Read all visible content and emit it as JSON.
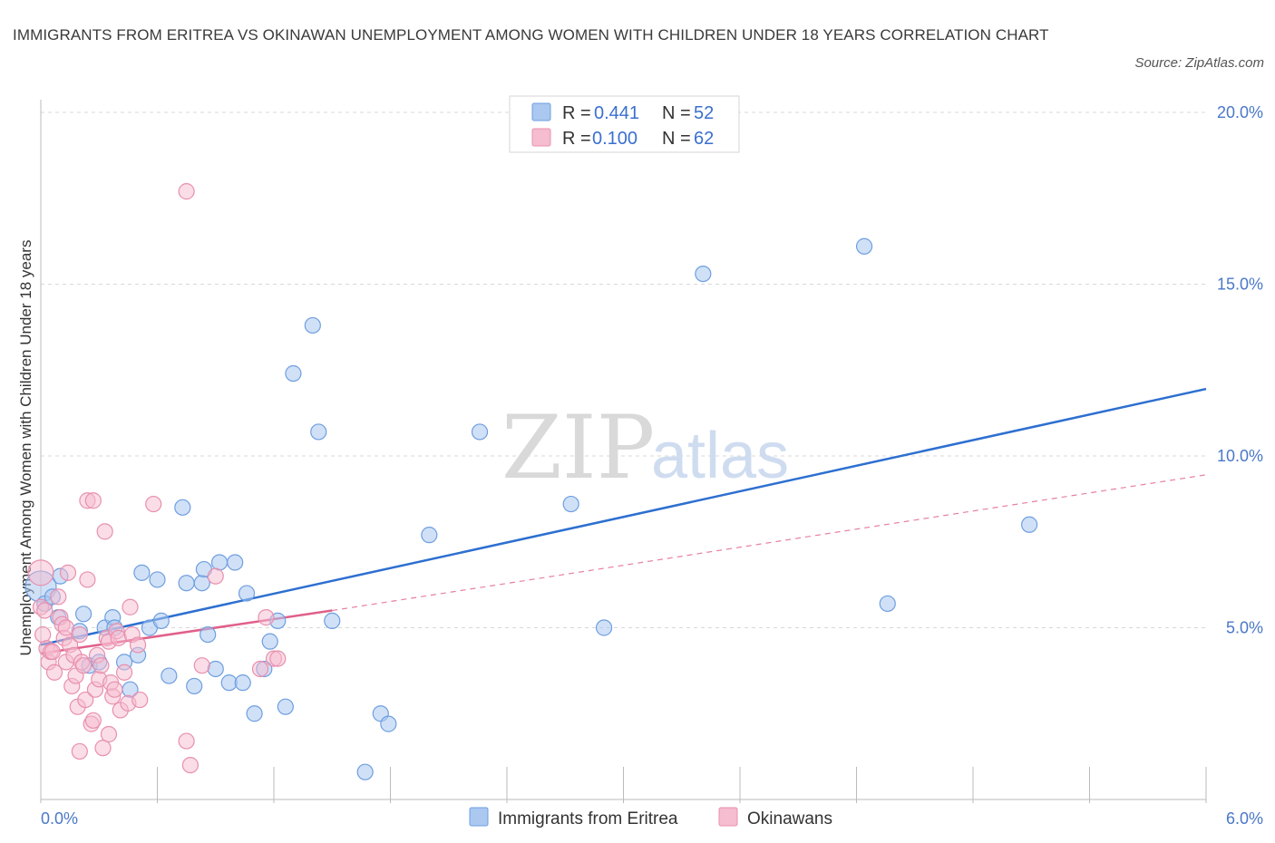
{
  "header": {
    "title": "IMMIGRANTS FROM ERITREA VS OKINAWAN UNEMPLOYMENT AMONG WOMEN WITH CHILDREN UNDER 18 YEARS CORRELATION CHART",
    "source": "Source: ZipAtlas.com"
  },
  "watermark": {
    "zip": "ZIP",
    "atlas": "atlas"
  },
  "legend": {
    "r_label": "R =",
    "n_label": "N =",
    "rows": [
      {
        "r": "0.441",
        "n": "52"
      },
      {
        "r": "0.100",
        "n": "62"
      }
    ]
  },
  "colors": {
    "series1_fill": "#aac8f0",
    "series1_stroke": "#6f9ee0",
    "series1_line": "#2d6fd0",
    "series2_fill": "#f6bcd0",
    "series2_stroke": "#e890ae",
    "series2_line": "#e0608a",
    "grid": "#d8d8d8",
    "tick_label": "#4a78c8"
  },
  "chart_data": {
    "type": "scatter",
    "title": "IMMIGRANTS FROM ERITREA VS OKINAWAN UNEMPLOYMENT AMONG WOMEN WITH CHILDREN UNDER 18 YEARS CORRELATION CHART",
    "xlabel": "",
    "ylabel": "Unemployment Among Women with Children Under 18 years",
    "xlim": [
      0,
      6
    ],
    "ylim": [
      0,
      20.5
    ],
    "x_tick_labels": [
      {
        "value": 0,
        "label": "0.0%"
      },
      {
        "value": 6,
        "label": "6.0%"
      }
    ],
    "y_tick_labels": [
      {
        "value": 5,
        "label": "5.0%"
      },
      {
        "value": 10,
        "label": "10.0%"
      },
      {
        "value": 15,
        "label": "15.0%"
      },
      {
        "value": 20,
        "label": "20.0%"
      }
    ],
    "grid": true,
    "legend_position": "top-center",
    "series": [
      {
        "name": "Immigrants from Eritrea",
        "r": 0.441,
        "n": 52,
        "trend": {
          "x": [
            0,
            6
          ],
          "y": [
            4.5,
            11.95
          ],
          "style": "solid"
        },
        "points": [
          [
            0.0,
            6.2
          ],
          [
            0.02,
            5.7
          ],
          [
            0.06,
            5.9
          ],
          [
            0.09,
            5.3
          ],
          [
            0.1,
            6.5
          ],
          [
            0.2,
            4.9
          ],
          [
            0.22,
            5.4
          ],
          [
            0.25,
            3.9
          ],
          [
            0.3,
            4.0
          ],
          [
            0.33,
            5.0
          ],
          [
            0.37,
            5.3
          ],
          [
            0.38,
            5.0
          ],
          [
            0.43,
            4.0
          ],
          [
            0.46,
            3.2
          ],
          [
            0.5,
            4.2
          ],
          [
            0.52,
            6.6
          ],
          [
            0.56,
            5.0
          ],
          [
            0.6,
            6.4
          ],
          [
            0.62,
            5.2
          ],
          [
            0.66,
            3.6
          ],
          [
            0.73,
            8.5
          ],
          [
            0.75,
            6.3
          ],
          [
            0.79,
            3.3
          ],
          [
            0.83,
            6.3
          ],
          [
            0.84,
            6.7
          ],
          [
            0.86,
            4.8
          ],
          [
            0.9,
            3.8
          ],
          [
            0.92,
            6.9
          ],
          [
            0.97,
            3.4
          ],
          [
            1.0,
            6.9
          ],
          [
            1.04,
            3.4
          ],
          [
            1.06,
            6.0
          ],
          [
            1.1,
            2.5
          ],
          [
            1.15,
            3.8
          ],
          [
            1.18,
            4.6
          ],
          [
            1.22,
            5.2
          ],
          [
            1.26,
            2.7
          ],
          [
            1.3,
            12.4
          ],
          [
            1.4,
            13.8
          ],
          [
            1.43,
            10.7
          ],
          [
            1.5,
            5.2
          ],
          [
            1.67,
            0.8
          ],
          [
            1.75,
            2.5
          ],
          [
            1.79,
            2.2
          ],
          [
            2.0,
            7.7
          ],
          [
            2.26,
            10.7
          ],
          [
            2.73,
            8.6
          ],
          [
            2.9,
            5.0
          ],
          [
            3.41,
            15.3
          ],
          [
            4.24,
            16.1
          ],
          [
            4.36,
            5.7
          ],
          [
            5.09,
            8.0
          ]
        ]
      },
      {
        "name": "Okinawans",
        "r": 0.1,
        "n": 62,
        "trend": {
          "x": [
            0,
            1.5
          ],
          "y": [
            4.25,
            5.5
          ],
          "style": "solid"
        },
        "trend_extended": {
          "x": [
            1.5,
            6
          ],
          "y": [
            5.5,
            9.45
          ],
          "style": "dashed"
        },
        "points": [
          [
            0.0,
            6.6
          ],
          [
            0.0,
            5.6
          ],
          [
            0.01,
            4.8
          ],
          [
            0.02,
            5.5
          ],
          [
            0.03,
            4.4
          ],
          [
            0.04,
            4.0
          ],
          [
            0.05,
            4.3
          ],
          [
            0.06,
            4.3
          ],
          [
            0.07,
            3.7
          ],
          [
            0.09,
            5.9
          ],
          [
            0.1,
            5.3
          ],
          [
            0.11,
            5.1
          ],
          [
            0.12,
            4.7
          ],
          [
            0.13,
            4.0
          ],
          [
            0.13,
            5.0
          ],
          [
            0.14,
            6.6
          ],
          [
            0.15,
            4.5
          ],
          [
            0.16,
            3.3
          ],
          [
            0.17,
            4.2
          ],
          [
            0.18,
            3.6
          ],
          [
            0.19,
            2.7
          ],
          [
            0.2,
            4.8
          ],
          [
            0.2,
            1.4
          ],
          [
            0.21,
            4.0
          ],
          [
            0.22,
            3.9
          ],
          [
            0.23,
            2.9
          ],
          [
            0.24,
            6.4
          ],
          [
            0.24,
            8.7
          ],
          [
            0.26,
            2.2
          ],
          [
            0.27,
            8.7
          ],
          [
            0.27,
            2.3
          ],
          [
            0.28,
            3.2
          ],
          [
            0.29,
            4.2
          ],
          [
            0.3,
            3.5
          ],
          [
            0.31,
            3.9
          ],
          [
            0.32,
            1.5
          ],
          [
            0.33,
            7.8
          ],
          [
            0.34,
            4.7
          ],
          [
            0.35,
            1.9
          ],
          [
            0.35,
            4.6
          ],
          [
            0.36,
            3.4
          ],
          [
            0.37,
            3.0
          ],
          [
            0.38,
            3.2
          ],
          [
            0.39,
            4.9
          ],
          [
            0.4,
            4.7
          ],
          [
            0.41,
            2.6
          ],
          [
            0.43,
            3.7
          ],
          [
            0.45,
            2.8
          ],
          [
            0.46,
            5.6
          ],
          [
            0.47,
            4.8
          ],
          [
            0.5,
            4.5
          ],
          [
            0.51,
            2.9
          ],
          [
            0.58,
            8.6
          ],
          [
            0.75,
            17.7
          ],
          [
            0.75,
            1.7
          ],
          [
            0.77,
            1.0
          ],
          [
            0.83,
            3.9
          ],
          [
            0.9,
            6.5
          ],
          [
            1.13,
            3.8
          ],
          [
            1.16,
            5.3
          ],
          [
            1.2,
            4.1
          ],
          [
            1.22,
            4.1
          ]
        ]
      }
    ]
  }
}
